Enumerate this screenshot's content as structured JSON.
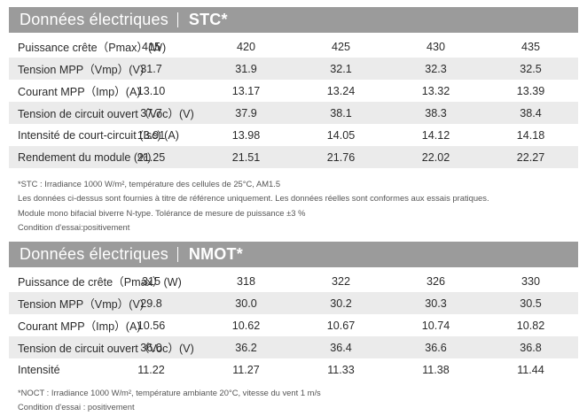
{
  "stc": {
    "title": "Données électriques",
    "mode": "STC*",
    "rows": [
      {
        "label": "Puissance crête（Pmax）(W)",
        "values": [
          "415",
          "420",
          "425",
          "430",
          "435"
        ]
      },
      {
        "label": "Tension MPP（Vmp）(V)",
        "values": [
          "31.7",
          "31.9",
          "32.1",
          "32.3",
          "32.5"
        ]
      },
      {
        "label": "Courant MPP（Imp）(A)",
        "values": [
          "13.10",
          "13.17",
          "13.24",
          "13.32",
          "13.39"
        ]
      },
      {
        "label": "Tension de circuit ouvert（Voc）(V)",
        "values": [
          "37.7",
          "37.9",
          "38.1",
          "38.3",
          "38.4"
        ]
      },
      {
        "label": "Intensité de court-circuit (Isc) (A)",
        "values": [
          "13.91",
          "13.98",
          "14.05",
          "14.12",
          "14.18"
        ]
      },
      {
        "label": "Rendement du module (%)",
        "values": [
          "21.25",
          "21.51",
          "21.76",
          "22.02",
          "22.27"
        ]
      }
    ],
    "notes": [
      "*STC : Irradiance 1000 W/m², température des cellules de 25°C, AM1.5",
      "Les données ci-dessus sont fournies à titre de référence uniquement. Les données réelles sont conformes aux essais pratiques.",
      "Module mono bifacial biverre N-type. Tolérance de mesure de puissance ±3 %",
      "Condition d'essai:positivement"
    ]
  },
  "nmot": {
    "title": "Données électriques",
    "mode": "NMOT*",
    "rows": [
      {
        "label": "Puissance de crête（Pmax）(W)",
        "values": [
          "315",
          "318",
          "322",
          "326",
          "330"
        ]
      },
      {
        "label": "Tension MPP（Vmp）(V)",
        "values": [
          "29.8",
          "30.0",
          "30.2",
          "30.3",
          "30.5"
        ]
      },
      {
        "label": "Courant MPP（Imp）(A)",
        "values": [
          "10.56",
          "10.62",
          "10.67",
          "10.74",
          "10.82"
        ]
      },
      {
        "label": "Tension de circuit ouvert（Voc）(V)",
        "values": [
          "36.0",
          "36.2",
          "36.4",
          "36.6",
          "36.8"
        ]
      },
      {
        "label": "Intensité",
        "values": [
          "11.22",
          "11.27",
          "11.33",
          "11.38",
          "11.44"
        ]
      }
    ],
    "notes": [
      "*NOCT : Irradiance 1000 W/m², température ambiante 20°C, vitesse du vent 1 m/s",
      "Condition d'essai : positivement"
    ]
  }
}
